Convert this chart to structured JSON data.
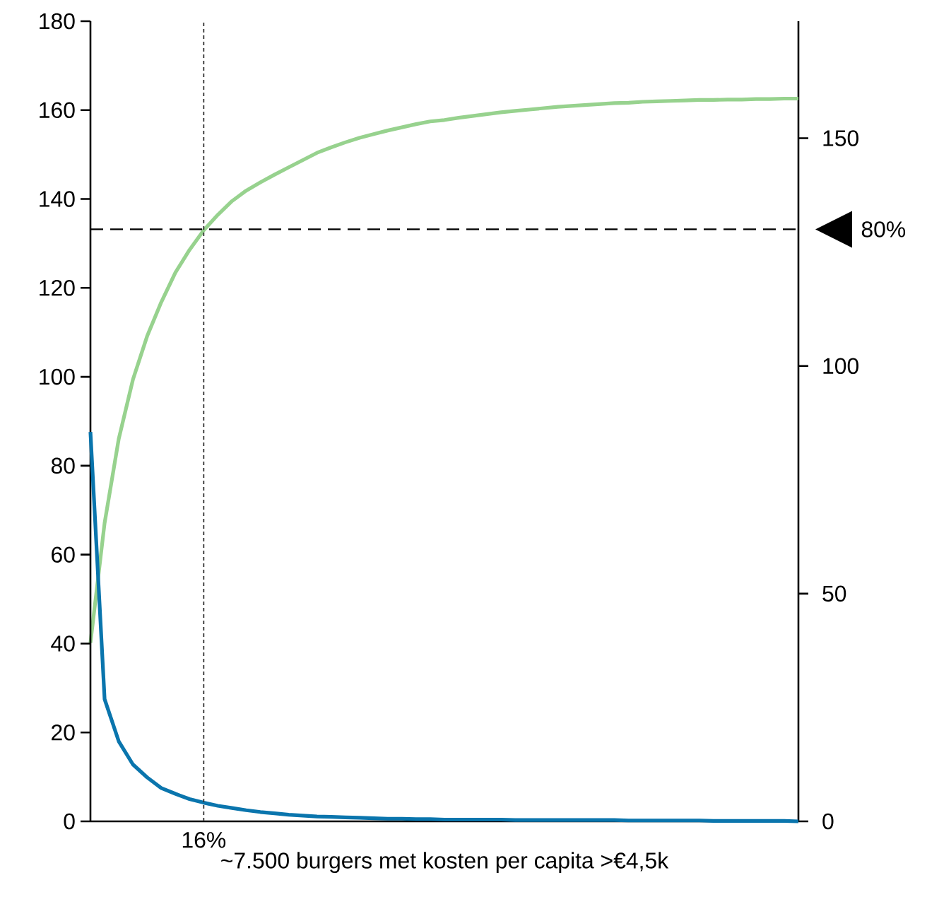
{
  "chart_data": {
    "type": "line",
    "xlabel": "~7.500 burgers met kosten per capita >€4,5k",
    "categories": [
      null,
      null,
      null,
      null,
      null,
      null,
      null,
      null,
      "16%",
      null,
      null,
      null,
      null,
      null,
      null,
      null,
      null,
      null,
      null,
      null,
      null,
      null,
      null,
      null,
      null,
      null,
      null,
      null,
      null,
      null,
      null,
      null,
      null,
      null,
      null,
      null,
      null,
      null,
      null,
      null,
      null,
      null,
      null,
      null,
      null,
      null,
      null,
      null,
      null,
      null,
      null
    ],
    "ylim": [
      0,
      180
    ],
    "yticks": [
      {
        "value": 0,
        "label": "0"
      },
      {
        "value": 20,
        "label": "20"
      },
      {
        "value": 40,
        "label": "40"
      },
      {
        "value": 60,
        "label": "60"
      },
      {
        "value": 80,
        "label": "80"
      },
      {
        "value": 100,
        "label": "100"
      },
      {
        "value": 120,
        "label": "120"
      },
      {
        "value": 140,
        "label": "140"
      },
      {
        "value": 160,
        "label": "160"
      },
      {
        "value": 180,
        "label": "180"
      }
    ],
    "y2lim": [
      0,
      175.7
    ],
    "y2ticks": [
      {
        "value": 0,
        "label": "0"
      },
      {
        "value": 50,
        "label": "50"
      },
      {
        "value": 100,
        "label": "100"
      },
      {
        "value": 150,
        "label": "150"
      }
    ],
    "series": [
      {
        "color": "#97d28e",
        "axis": "y2",
        "values": [
          39.2,
          65.5,
          84,
          97,
          106.5,
          114,
          120.5,
          125.5,
          129.8,
          133.2,
          136.2,
          138.5,
          140.3,
          142,
          143.6,
          145.2,
          146.8,
          148,
          149.1,
          150.1,
          150.9,
          151.7,
          152.4,
          153.1,
          153.7,
          154,
          154.5,
          154.9,
          155.3,
          155.7,
          156,
          156.3,
          156.6,
          156.9,
          157.1,
          157.3,
          157.5,
          157.7,
          157.8,
          158,
          158.1,
          158.2,
          158.3,
          158.4,
          158.4,
          158.5,
          158.5,
          158.6,
          158.6,
          158.7,
          158.7
        ]
      },
      {
        "color": "#0a75ad",
        "values": [
          87.6,
          27.5,
          18,
          12.8,
          9.9,
          7.5,
          6.2,
          5,
          4.2,
          3.5,
          3,
          2.5,
          2.1,
          1.8,
          1.5,
          1.3,
          1.1,
          1,
          0.9,
          0.8,
          0.7,
          0.6,
          0.6,
          0.5,
          0.5,
          0.4,
          0.4,
          0.4,
          0.4,
          0.4,
          0.3,
          0.3,
          0.3,
          0.3,
          0.3,
          0.3,
          0.3,
          0.3,
          0.2,
          0.2,
          0.2,
          0.2,
          0.2,
          0.2,
          0.1,
          0.1,
          0.1,
          0.1,
          0.1,
          0.1,
          0
        ]
      }
    ],
    "ref_lines": [
      {
        "axis": "x",
        "value": "16%",
        "line_style": "dotted"
      },
      {
        "axis": "y2",
        "value": 130,
        "line_style": "dashed"
      }
    ],
    "annotations": [
      "80%"
    ]
  }
}
